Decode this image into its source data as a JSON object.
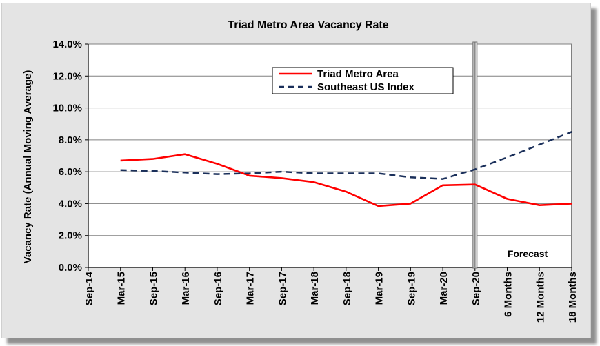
{
  "chart_data": {
    "type": "line",
    "title": "Triad Metro Area Vacancy Rate",
    "ylabel": "Vacancy Rate (Annual Moving Average)",
    "xlabel": "",
    "ylim": [
      0,
      14
    ],
    "yticks": [
      "0.0%",
      "2.0%",
      "4.0%",
      "6.0%",
      "8.0%",
      "10.0%",
      "12.0%",
      "14.0%"
    ],
    "categories": [
      "Sep-14",
      "Mar-15",
      "Sep-15",
      "Mar-16",
      "Sep-16",
      "Mar-17",
      "Sep-17",
      "Mar-18",
      "Sep-18",
      "Mar-19",
      "Sep-19",
      "Mar-20",
      "Sep-20",
      "6 Months",
      "12 Months",
      "18 Months"
    ],
    "series": [
      {
        "name": "Triad  Metro Area",
        "color": "#ff0000",
        "style": "solid",
        "values": [
          null,
          6.7,
          6.8,
          7.1,
          6.5,
          5.75,
          5.6,
          5.35,
          4.75,
          3.85,
          4.0,
          5.15,
          5.2,
          4.3,
          3.9,
          4.0
        ]
      },
      {
        "name": "Southeast US Index",
        "color": "#1a2f5a",
        "style": "dashed",
        "values": [
          null,
          6.1,
          6.05,
          5.95,
          5.85,
          5.9,
          6.0,
          5.9,
          5.9,
          5.9,
          5.65,
          5.55,
          6.15,
          6.9,
          7.7,
          8.5
        ]
      }
    ],
    "divider_at": "Sep-20",
    "annotation": "Forecast",
    "grid": true,
    "legend_position": "top-center"
  }
}
